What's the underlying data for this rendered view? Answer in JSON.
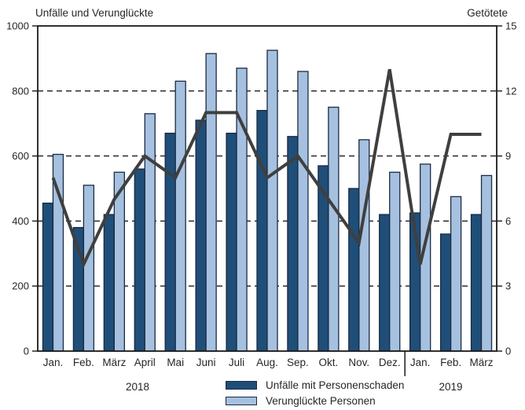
{
  "chart_data": {
    "type": "bar",
    "categories": [
      "Jan.",
      "Feb.",
      "März",
      "April",
      "Mai",
      "Juni",
      "Juli",
      "Aug.",
      "Sep.",
      "Okt.",
      "Nov.",
      "Dez.",
      "Jan.",
      "Feb.",
      "März"
    ],
    "year_groups": [
      {
        "label": "2018",
        "from": 0,
        "to": 11
      },
      {
        "label": "2019",
        "from": 12,
        "to": 14
      }
    ],
    "series": [
      {
        "name": "Unfälle mit Personenschaden",
        "type": "bar",
        "axis": "left",
        "color": "#1f4e79",
        "values": [
          455,
          380,
          420,
          560,
          670,
          710,
          670,
          740,
          660,
          570,
          500,
          420,
          425,
          360,
          420
        ]
      },
      {
        "name": "Verunglückte Personen",
        "type": "bar",
        "axis": "left",
        "color": "#a6c1e0",
        "values": [
          605,
          510,
          550,
          730,
          830,
          915,
          870,
          925,
          860,
          750,
          650,
          550,
          575,
          475,
          540
        ]
      },
      {
        "name": "Getötete",
        "type": "line",
        "axis": "right",
        "color": "#3f3f3f",
        "values": [
          8,
          4,
          7,
          9,
          8,
          11,
          11,
          8,
          9,
          7,
          5,
          13,
          4,
          10,
          10
        ]
      }
    ],
    "left_axis": {
      "title": "Unfälle und Verunglückte",
      "min": 0,
      "max": 1000,
      "step": 200
    },
    "right_axis": {
      "title": "Getötete",
      "min": 0,
      "max": 15,
      "step": 3
    },
    "grid": "dashed-horizontal",
    "legend_position": "bottom-center",
    "colors": {
      "frame": "#1a1a1a",
      "bar_border": "#1b2a41",
      "text": "#262626"
    }
  }
}
